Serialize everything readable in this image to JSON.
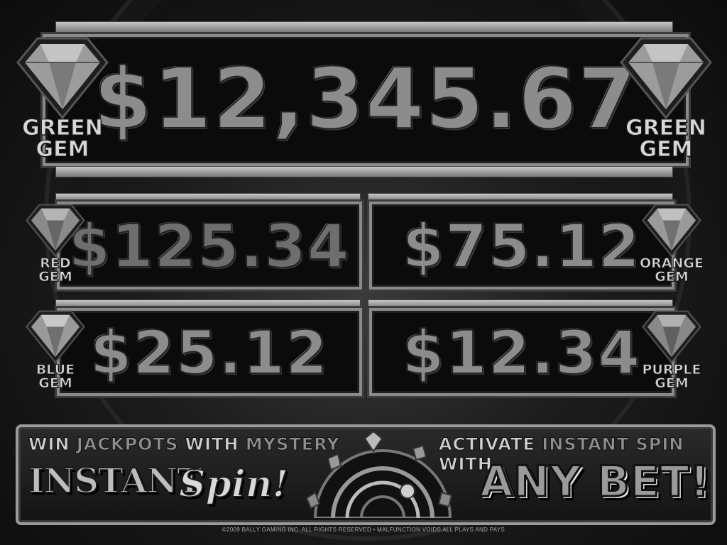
{
  "jackpots": {
    "green": {
      "amount": "$12,345.67",
      "label_top": "GREEN",
      "label_bottom": "GEM"
    },
    "red": {
      "amount": "$125.34",
      "label_top": "RED",
      "label_bottom": "GEM"
    },
    "orange": {
      "amount": "$75.12",
      "label_top": "ORANGE",
      "label_bottom": "GEM"
    },
    "blue": {
      "amount": "$25.12",
      "label_top": "BLUE",
      "label_bottom": "GEM"
    },
    "purple": {
      "amount": "$12.34",
      "label_top": "PURPLE",
      "label_bottom": "GEM"
    }
  },
  "promo": {
    "left_line": {
      "w1": "WIN",
      "w2": "JACKPOTS",
      "w3": "WITH",
      "w4": "MYSTERY"
    },
    "instant": "INSTANT",
    "spin": "Spin!",
    "right_line": {
      "w1": "ACTIVATE",
      "w2": "INSTANT SPIN",
      "w3": "WITH"
    },
    "any_bet": "ANY BET!"
  },
  "footer": "©2009 BALLY GAMING INC. ALL RIGHTS RESERVED  •  MALFUNCTION VOIDS ALL PLAYS AND PAYS",
  "icons": [
    "diamond-gem-icon",
    "spin-wheel-icon"
  ]
}
